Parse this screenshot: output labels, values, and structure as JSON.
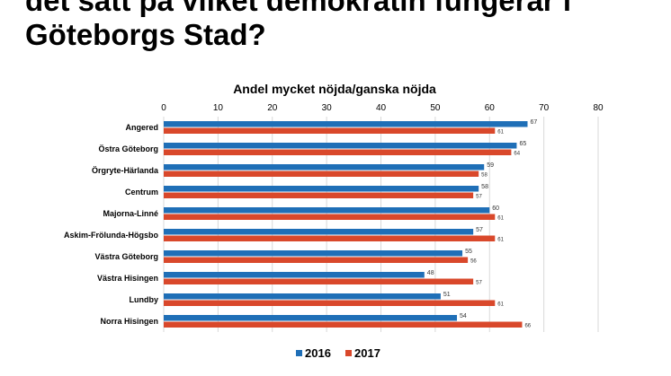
{
  "slide": {
    "title_line1": "det sätt på vilket demokratin fungerar i",
    "title_line2": "Göteborgs Stad?"
  },
  "chart_data": {
    "type": "bar",
    "orientation": "horizontal",
    "title": "Andel mycket nöjda/ganska nöjda",
    "categories": [
      "Angered",
      "Östra Göteborg",
      "Örgryte-Härlanda",
      "Centrum",
      "Majorna-Linné",
      "Askim-Frölunda-Högsbo",
      "Västra Göteborg",
      "Västra Hisingen",
      "Lundby",
      "Norra Hisingen"
    ],
    "series": [
      {
        "name": "2016",
        "color": "#1f6fb7",
        "values": [
          67,
          65,
          59,
          58,
          60,
          57,
          55,
          48,
          51,
          54
        ]
      },
      {
        "name": "2017",
        "color": "#d9482b",
        "values": [
          61,
          64,
          58,
          57,
          61,
          61,
          56,
          57,
          61,
          66
        ]
      }
    ],
    "xlim": [
      0,
      80
    ],
    "xticks": [
      0,
      10,
      20,
      30,
      40,
      50,
      60,
      70,
      80
    ],
    "xaxis_position": "top",
    "grid": true,
    "legend": "bottom"
  }
}
